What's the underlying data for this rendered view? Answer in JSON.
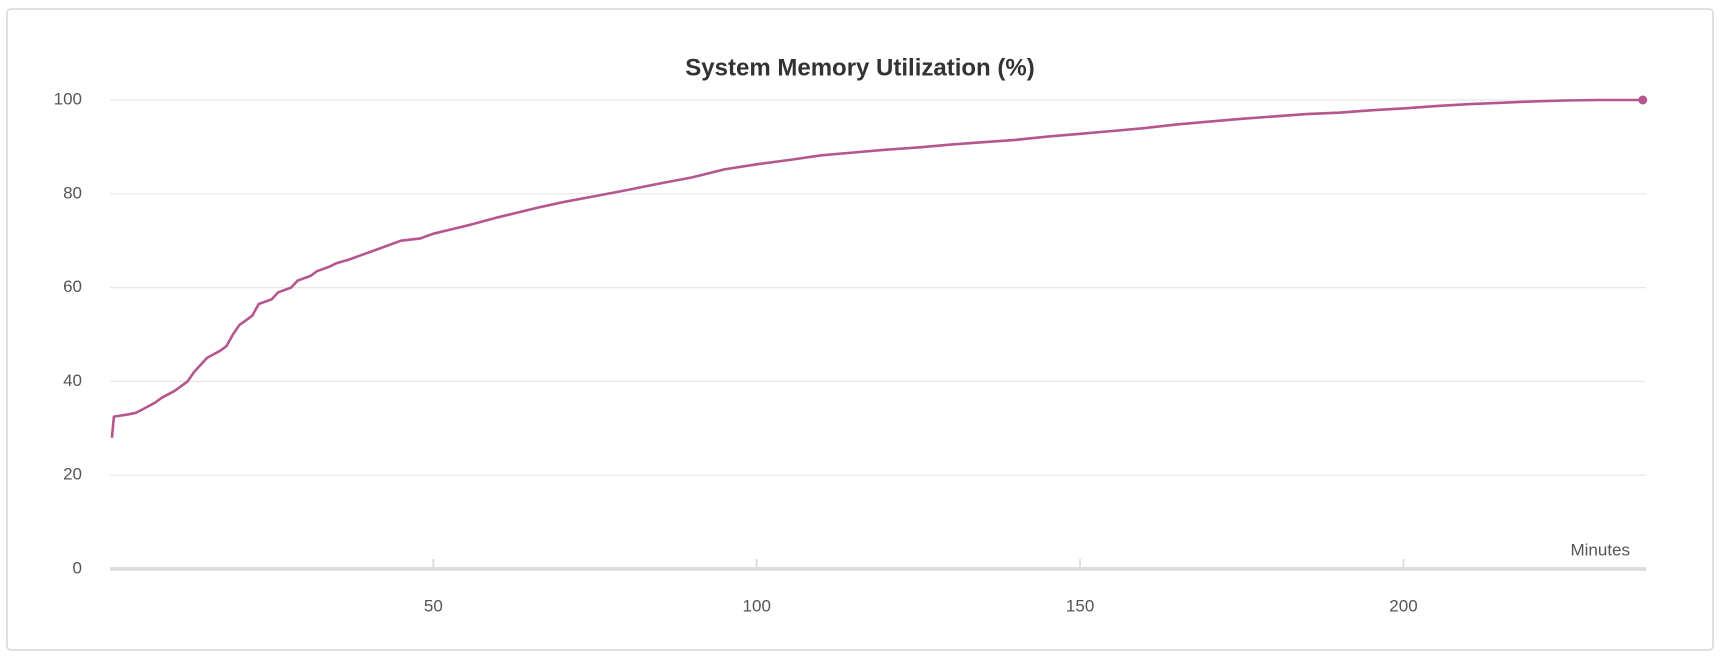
{
  "chart_data": {
    "type": "line",
    "title": "System Memory Utilization (%)",
    "x_label": "Minutes",
    "x": [
      0.3,
      0.6,
      3,
      4,
      5,
      7,
      8,
      10,
      12,
      13,
      14,
      15,
      17,
      18,
      19,
      20,
      21,
      22,
      23,
      25,
      26,
      28,
      29,
      31,
      32,
      34,
      35,
      37,
      39,
      41,
      43,
      45,
      48,
      50,
      53,
      56,
      60,
      63,
      66,
      70,
      75,
      80,
      85,
      90,
      95,
      100,
      105,
      110,
      115,
      120,
      125,
      130,
      135,
      140,
      145,
      150,
      155,
      160,
      165,
      170,
      175,
      180,
      185,
      190,
      195,
      200,
      205,
      210,
      215,
      220,
      225,
      230,
      237
    ],
    "series": [
      {
        "name": "System Memory Utilization (%)",
        "color": "#b5568f",
        "values": [
          28,
          32.5,
          33,
          33.3,
          34,
          35.5,
          36.5,
          38,
          40,
          42,
          43.5,
          45,
          46.5,
          47.5,
          50,
          52,
          53,
          54,
          56.5,
          57.5,
          59,
          60,
          61.5,
          62.5,
          63.5,
          64.5,
          65.2,
          66,
          67,
          68,
          69,
          70,
          70.5,
          71.5,
          72.5,
          73.5,
          75,
          76,
          77,
          78.2,
          79.5,
          80.8,
          82.2,
          83.5,
          85.2,
          86.3,
          87.2,
          88.2,
          88.8,
          89.4,
          89.9,
          90.5,
          91,
          91.5,
          92.2,
          92.8,
          93.4,
          94,
          94.8,
          95.4,
          96,
          96.5,
          97,
          97.3,
          97.8,
          98.2,
          98.7,
          99.1,
          99.4,
          99.7,
          99.9,
          100,
          100
        ]
      }
    ],
    "xlim": [
      0,
      237.5
    ],
    "xticks": [
      50,
      100,
      150,
      200
    ],
    "ylim": [
      0,
      100
    ],
    "yticks": [
      0,
      20,
      40,
      60,
      80,
      100
    ],
    "grid": true
  }
}
